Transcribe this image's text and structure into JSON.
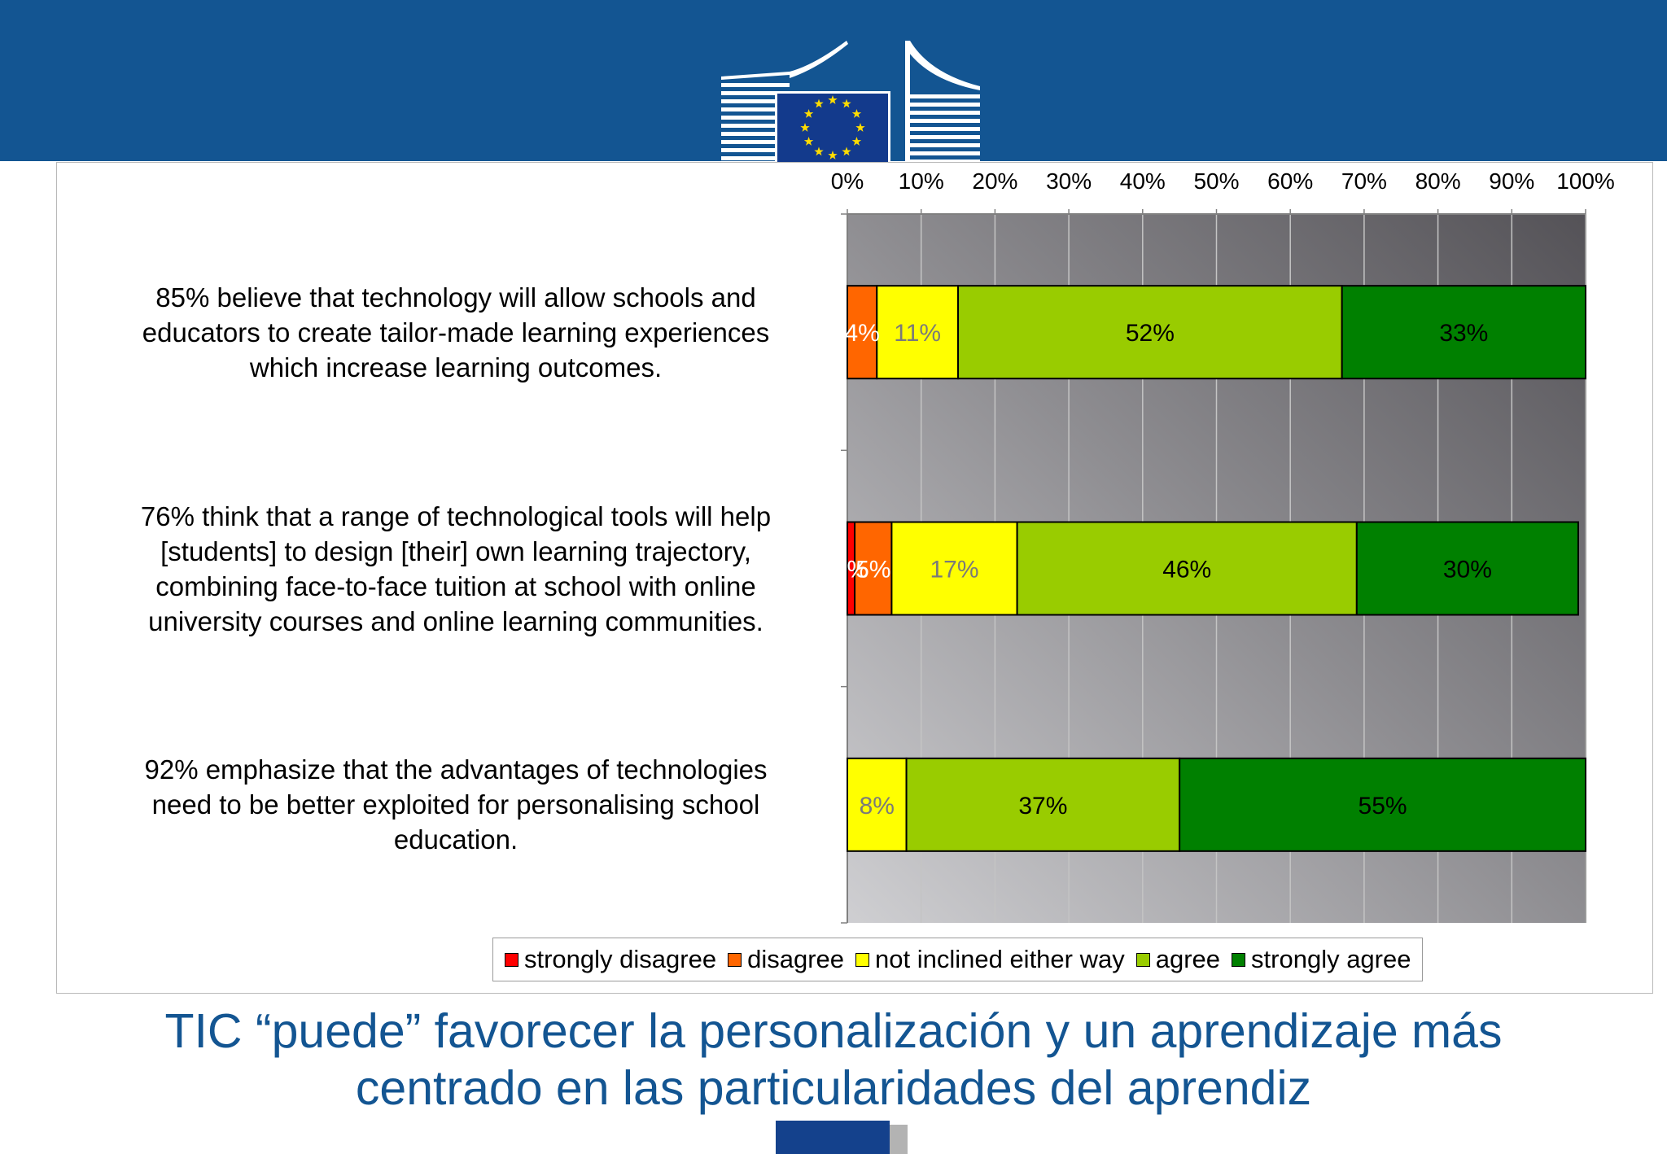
{
  "slide": {
    "title_line1": "TIC “puede” favorecer la personalización y un aprendizaje más",
    "title_line2": "centrado en las particularidades del aprendiz",
    "colors": {
      "header": "#135592",
      "title": "#135592",
      "flag": "#133a8c",
      "stars": "#ffdd00"
    }
  },
  "chart_data": {
    "type": "bar",
    "orientation": "horizontal",
    "stacked": true,
    "title": "",
    "xlabel": "",
    "ylabel": "",
    "xlim": [
      0,
      100
    ],
    "x_ticks": [
      "0%",
      "10%",
      "20%",
      "30%",
      "40%",
      "50%",
      "60%",
      "70%",
      "80%",
      "90%",
      "100%"
    ],
    "axis_position": "top",
    "grid": true,
    "legend_position": "bottom",
    "categories": [
      {
        "lines": [
          "85% believe that technology will allow schools and",
          "educators to create tailor-made learning experiences",
          "which increase learning outcomes."
        ]
      },
      {
        "lines": [
          "76% think that a range of technological tools will help",
          "[students] to design [their] own learning trajectory,",
          "combining face-to-face tuition at school with online",
          "university courses and online learning communities."
        ]
      },
      {
        "lines": [
          "92% emphasize that the advantages of technologies",
          "need to be better exploited for personalising school",
          "education."
        ]
      }
    ],
    "series": [
      {
        "name": "strongly disagree",
        "color": "#ff0000",
        "values": [
          0,
          1,
          0
        ],
        "labels": [
          "0%",
          "1%",
          "0%"
        ]
      },
      {
        "name": "disagree",
        "color": "#ff6600",
        "values": [
          4,
          5,
          0
        ],
        "labels": [
          "4%",
          "5%",
          "0%"
        ]
      },
      {
        "name": "not inclined either way",
        "color": "#ffff00",
        "values": [
          11,
          17,
          8
        ],
        "labels": [
          "11%",
          "17%",
          "8%"
        ]
      },
      {
        "name": "agree",
        "color": "#99cc00",
        "values": [
          52,
          46,
          37
        ],
        "labels": [
          "52%",
          "46%",
          "37%"
        ]
      },
      {
        "name": "strongly agree",
        "color": "#008000",
        "values": [
          33,
          30,
          55
        ],
        "labels": [
          "33%",
          "30%",
          "55%"
        ]
      }
    ]
  }
}
